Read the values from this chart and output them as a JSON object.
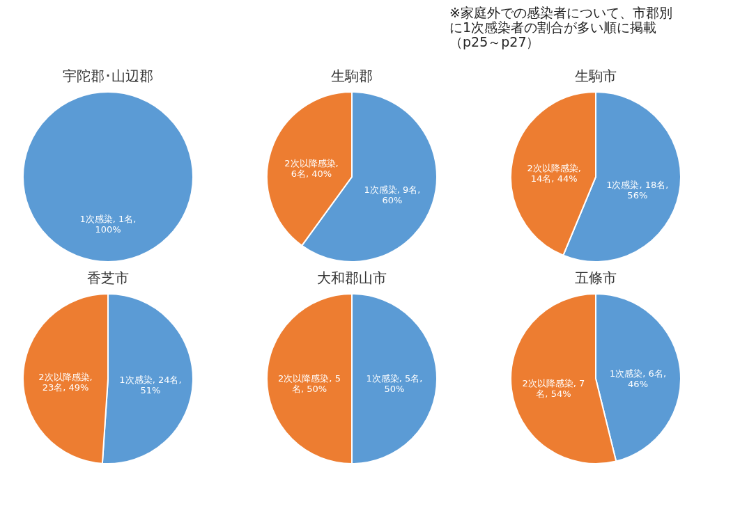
{
  "chart_data": [
    {
      "type": "pie",
      "title": "宇陀郡･山辺郡",
      "categories": [
        "1次感染"
      ],
      "values": [
        1
      ],
      "colors": [
        "#5b9bd5"
      ],
      "value_labels": [
        ", 1名,\n100%"
      ],
      "legend": false
    },
    {
      "type": "pie",
      "title": "生駒郡",
      "categories": [
        "1次感染",
        "2次以降感染"
      ],
      "values": [
        9,
        6
      ],
      "colors": [
        "#5b9bd5",
        "#ed7d31"
      ],
      "value_labels": [
        ", 9名,\n60%",
        ",\n6名, 40%"
      ],
      "legend": false
    },
    {
      "type": "pie",
      "title": "生駒市",
      "categories": [
        "1次感染",
        "2次以降感染"
      ],
      "values": [
        18,
        14
      ],
      "colors": [
        "#5b9bd5",
        "#ed7d31"
      ],
      "value_labels": [
        ", 18名,\n56%",
        ",\n14名, 44%"
      ],
      "legend": false,
      "annotations": [
        "※家庭外での感染者について、市郡別に1次感染者の割合が多い順に掲載（p25～p27）"
      ]
    },
    {
      "type": "pie",
      "title": "香芝市",
      "categories": [
        "1次感染",
        "2次以降感染"
      ],
      "values": [
        24,
        23
      ],
      "colors": [
        "#5b9bd5",
        "#ed7d31"
      ],
      "value_labels": [
        ", 24名,\n51%",
        ",\n23名, 49%"
      ],
      "legend": false
    },
    {
      "type": "pie",
      "title": "大和郡山市",
      "categories": [
        "1次感染",
        "2次以降感染"
      ],
      "values": [
        5,
        5
      ],
      "colors": [
        "#5b9bd5",
        "#ed7d31"
      ],
      "value_labels": [
        ", 5名,\n50%",
        ", 5\n名, 50%"
      ],
      "legend": false
    },
    {
      "type": "pie",
      "title": "五條市",
      "categories": [
        "1次感染",
        "2次以降感染"
      ],
      "values": [
        6,
        7
      ],
      "colors": [
        "#5b9bd5",
        "#ed7d31"
      ],
      "value_labels": [
        ", 6名,\n46%",
        ", 7\n名, 54%"
      ],
      "legend": false
    }
  ]
}
